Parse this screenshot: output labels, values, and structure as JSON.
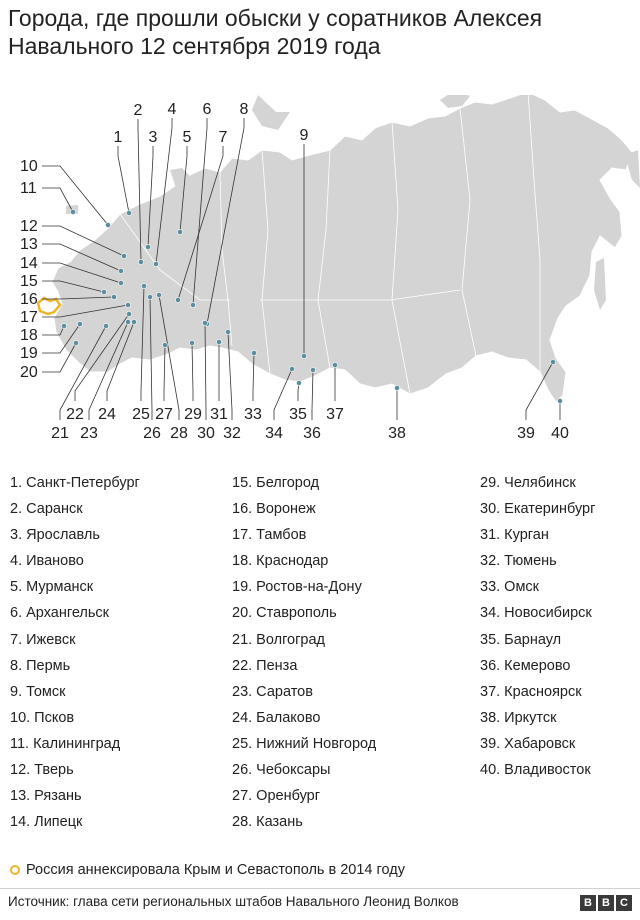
{
  "title": "Города, где прошли обыски у соратников Алексея Навального 12 сентября 2019 года",
  "map": {
    "numbers": [
      "1",
      "2",
      "3",
      "4",
      "5",
      "6",
      "7",
      "8",
      "9",
      "10",
      "11",
      "12",
      "13",
      "14",
      "15",
      "16",
      "17",
      "18",
      "19",
      "20",
      "21",
      "22",
      "23",
      "24",
      "25",
      "26",
      "27",
      "28",
      "29",
      "30",
      "31",
      "32",
      "33",
      "34",
      "35",
      "36",
      "37",
      "38",
      "39",
      "40"
    ],
    "land_color": "#d4d4d4",
    "dot_color": "#5b8fa0",
    "crimea_color": "#f0b429"
  },
  "cities": [
    "1. Санкт-Петербург",
    "2. Саранск",
    "3. Ярославль",
    "4. Иваново",
    "5. Мурманск",
    "6. Архангельск",
    "7. Ижевск",
    "8. Пермь",
    "9. Томск",
    "10. Псков",
    "11. Калининград",
    "12. Тверь",
    "13. Рязань",
    "14. Липецк",
    "15. Белгород",
    "16. Воронеж",
    "17. Тамбов",
    "18. Краснодар",
    "19. Ростов-на-Дону",
    "20. Ставрополь",
    "21. Волгоград",
    "22. Пенза",
    "23. Саратов",
    "24. Балаково",
    "25. Нижний Новгород",
    "26. Чебоксары",
    "27. Оренбург",
    "28. Казань",
    "29. Челябинск",
    "30. Екатеринбург",
    "31. Курган",
    "32. Тюмень",
    "33. Омск",
    "34. Новосибирск",
    "35. Барнаул",
    "36. Кемерово",
    "37. Красноярск",
    "38. Иркутск",
    "39. Хабаровск",
    "40. Владивосток"
  ],
  "legend": "Россия аннексировала Крым и Севастополь в 2014 году",
  "source": "Источник: глава сети региональных штабов Навального Леонид Волков",
  "logo": [
    "B",
    "B",
    "C"
  ]
}
